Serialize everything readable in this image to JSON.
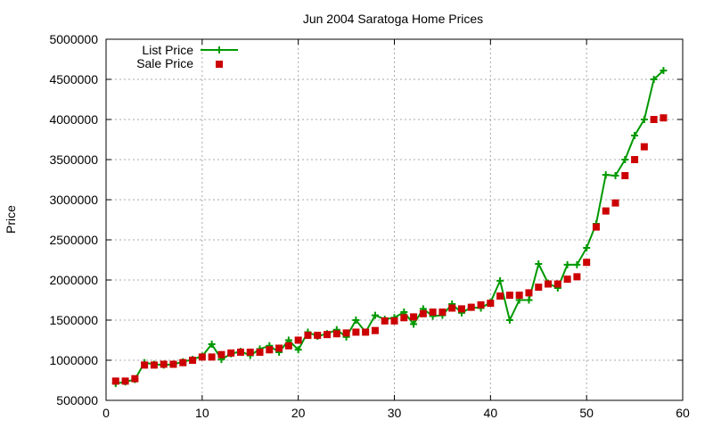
{
  "chart_data": {
    "type": "line",
    "title": "Jun 2004 Saratoga Home Prices",
    "xlabel": "",
    "ylabel": "Price",
    "xlim": [
      0,
      60
    ],
    "ylim": [
      500000,
      5000000
    ],
    "x_ticks": [
      0,
      10,
      20,
      30,
      40,
      50,
      60
    ],
    "y_ticks": [
      500000,
      1000000,
      1500000,
      2000000,
      2500000,
      3000000,
      3500000,
      4000000,
      4500000,
      5000000
    ],
    "x_tick_labels": [
      "0",
      "10",
      "20",
      "30",
      "40",
      "50",
      "60"
    ],
    "y_tick_labels": [
      "500000",
      "1000000",
      "1500000",
      "2000000",
      "2500000",
      "3000000",
      "3500000",
      "4000000",
      "4500000",
      "5000000"
    ],
    "grid": true,
    "legend_position": "top-left",
    "series": [
      {
        "name": "List Price",
        "style": "line+cross",
        "color": "#009900",
        "x": [
          1,
          2,
          3,
          4,
          5,
          6,
          7,
          8,
          9,
          10,
          11,
          12,
          13,
          14,
          15,
          16,
          17,
          18,
          19,
          20,
          21,
          22,
          23,
          24,
          25,
          26,
          27,
          28,
          29,
          30,
          31,
          32,
          33,
          34,
          35,
          36,
          37,
          38,
          39,
          40,
          41,
          42,
          43,
          44,
          45,
          46,
          47,
          48,
          49,
          50,
          51,
          52,
          53,
          54,
          55,
          56,
          57,
          58
        ],
        "values": [
          710000,
          730000,
          760000,
          970000,
          950000,
          940000,
          950000,
          980000,
          1010000,
          1050000,
          1200000,
          1010000,
          1080000,
          1110000,
          1060000,
          1140000,
          1180000,
          1100000,
          1250000,
          1130000,
          1350000,
          1300000,
          1330000,
          1380000,
          1290000,
          1500000,
          1350000,
          1560000,
          1510000,
          1530000,
          1600000,
          1450000,
          1640000,
          1550000,
          1560000,
          1700000,
          1590000,
          1660000,
          1650000,
          1720000,
          1990000,
          1500000,
          1750000,
          1750000,
          2200000,
          1960000,
          1900000,
          2190000,
          2190000,
          2400000,
          2700000,
          3310000,
          3300000,
          3500000,
          3800000,
          4000000,
          4500000,
          4610000
        ]
      },
      {
        "name": "Sale Price",
        "style": "square",
        "color": "#cc0000",
        "x": [
          1,
          2,
          3,
          4,
          5,
          6,
          7,
          8,
          9,
          10,
          11,
          12,
          13,
          14,
          15,
          16,
          17,
          18,
          19,
          20,
          21,
          22,
          23,
          24,
          25,
          26,
          27,
          28,
          29,
          30,
          31,
          32,
          33,
          34,
          35,
          36,
          37,
          38,
          39,
          40,
          41,
          42,
          43,
          44,
          45,
          46,
          47,
          48,
          49,
          50,
          51,
          52,
          53,
          54,
          55,
          56,
          57,
          58
        ],
        "values": [
          740000,
          740000,
          770000,
          940000,
          940000,
          950000,
          950000,
          970000,
          1000000,
          1040000,
          1040000,
          1070000,
          1090000,
          1100000,
          1100000,
          1100000,
          1130000,
          1150000,
          1180000,
          1250000,
          1310000,
          1310000,
          1320000,
          1330000,
          1340000,
          1350000,
          1350000,
          1370000,
          1490000,
          1490000,
          1530000,
          1540000,
          1580000,
          1600000,
          1600000,
          1650000,
          1640000,
          1660000,
          1690000,
          1710000,
          1800000,
          1810000,
          1810000,
          1840000,
          1910000,
          1950000,
          1950000,
          2010000,
          2040000,
          2220000,
          2660000,
          2860000,
          2960000,
          3300000,
          3500000,
          3660000,
          4000000,
          4020000
        ]
      }
    ]
  }
}
